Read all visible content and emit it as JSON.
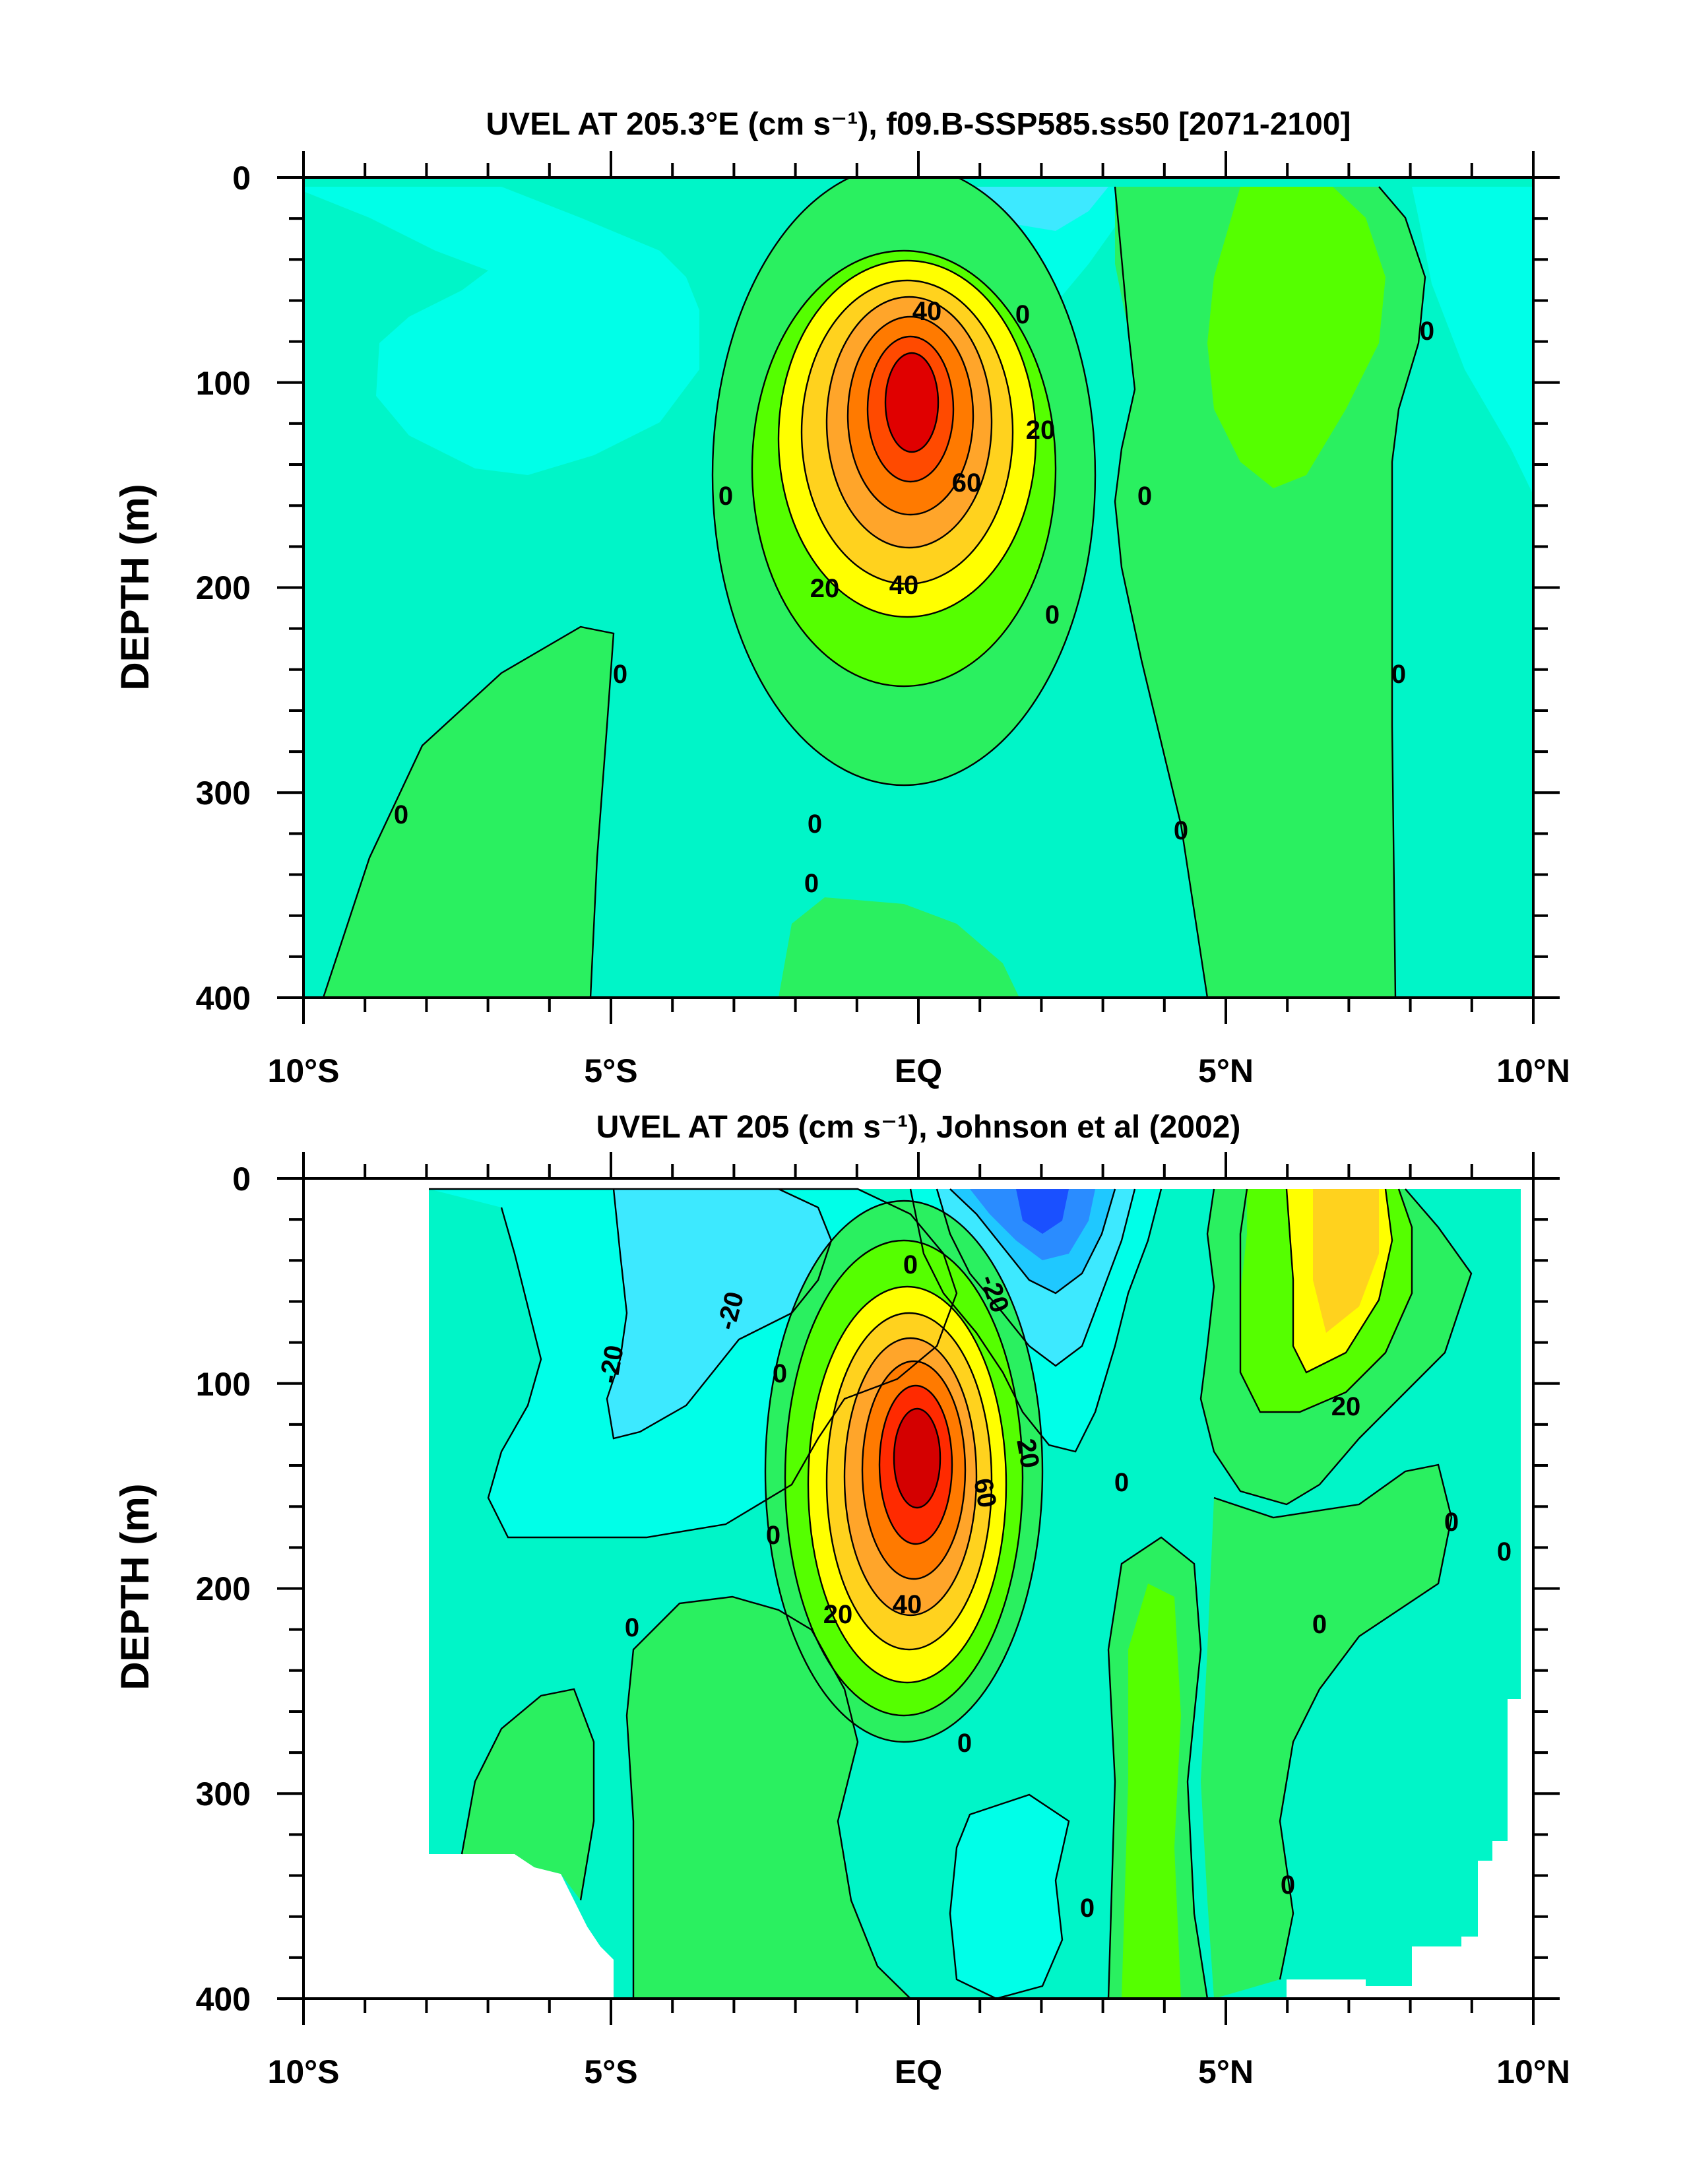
{
  "chart_data": [
    {
      "type": "contour",
      "title": "UVEL AT 205.3°E (cm s⁻¹), f09.B-SSP585.ss50 [2071-2100]",
      "xlabel": "",
      "ylabel": "DEPTH (m)",
      "x_ticks": [
        "10°S",
        "5°S",
        "EQ",
        "5°N",
        "10°N"
      ],
      "x_values": [
        -10,
        -5,
        0,
        5,
        10
      ],
      "y_ticks": [
        "0",
        "100",
        "200",
        "300",
        "400"
      ],
      "y_values": [
        0,
        100,
        200,
        300,
        400
      ],
      "xlim": [
        -10,
        10
      ],
      "ylim": [
        0,
        400
      ],
      "y_reversed": true,
      "contour_labels": [
        "40",
        "0",
        "0",
        "20",
        "0",
        "0",
        "60",
        "0",
        "20",
        "40",
        "0",
        "0",
        "0",
        "0",
        "0",
        "0",
        "0",
        "0"
      ],
      "color_levels": [
        {
          "max": -40,
          "color": "#1a50ff"
        },
        {
          "max": -30,
          "color": "#2a8cff"
        },
        {
          "max": -20,
          "color": "#1fc8ff"
        },
        {
          "max": -10,
          "color": "#3de9ff"
        },
        {
          "max": 0,
          "color": "#00ffe8"
        },
        {
          "max": 10,
          "color": "#00fbc7"
        },
        {
          "max": 20,
          "color": "#00f5a0"
        },
        {
          "max": 30,
          "color": "#2af060"
        },
        {
          "max": 40,
          "color": "#55ff00"
        },
        {
          "max": 50,
          "color": "#ffff00"
        },
        {
          "max": 60,
          "color": "#ffd21e"
        },
        {
          "max": 70,
          "color": "#ffa52a"
        },
        {
          "max": 80,
          "color": "#ff7a00"
        },
        {
          "max": 90,
          "color": "#ff4a00"
        },
        {
          "max": 1000,
          "color": "#e00000"
        }
      ]
    },
    {
      "type": "contour",
      "title": "UVEL AT 205 (cm s⁻¹), Johnson et al (2002)",
      "xlabel": "",
      "ylabel": "DEPTH (m)",
      "x_ticks": [
        "10°S",
        "5°S",
        "EQ",
        "5°N",
        "10°N"
      ],
      "x_values": [
        -10,
        -5,
        0,
        5,
        10
      ],
      "y_ticks": [
        "0",
        "100",
        "200",
        "300",
        "400"
      ],
      "y_values": [
        0,
        100,
        200,
        300,
        400
      ],
      "xlim": [
        -10,
        10
      ],
      "ylim": [
        0,
        400
      ],
      "y_reversed": true,
      "contour_labels": [
        "-20",
        "-20",
        "-20",
        "0",
        "20",
        "0",
        "0",
        "20",
        "0",
        "60",
        "20",
        "0",
        "0",
        "0",
        "40",
        "0",
        "0",
        "0",
        "0"
      ]
    }
  ]
}
